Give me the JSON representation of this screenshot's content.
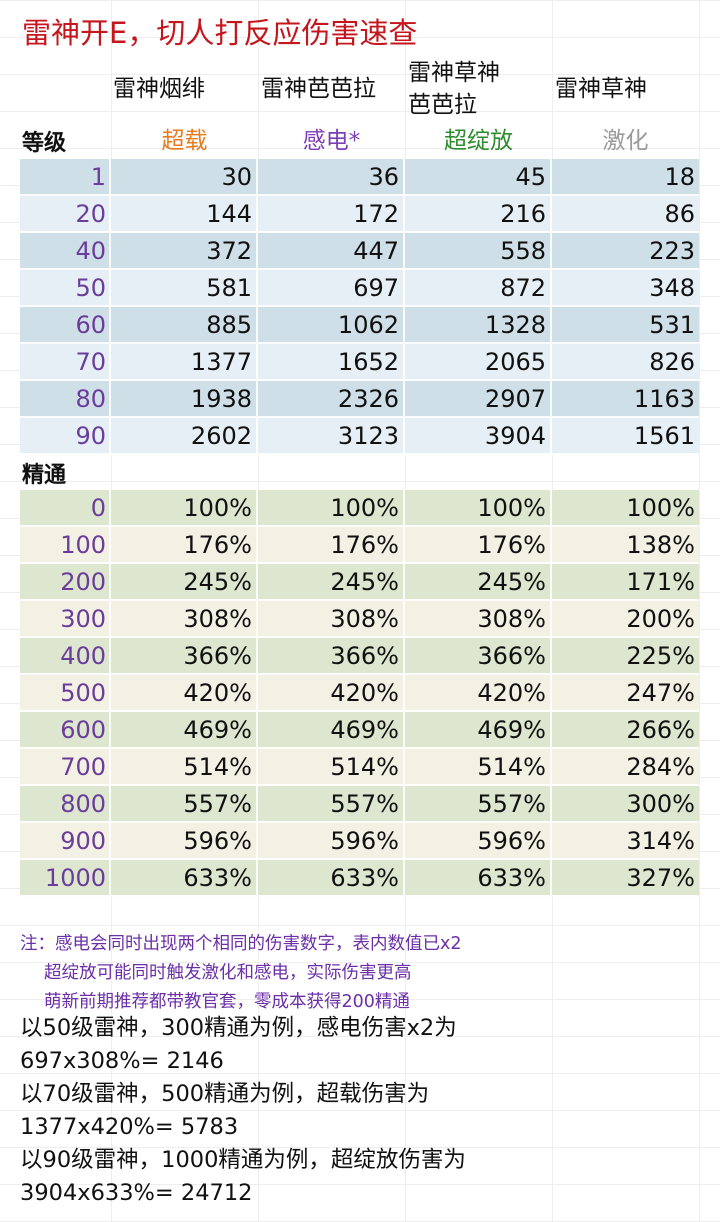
{
  "title": "雷神开E，切人打反应伤害速查",
  "columns": [
    {
      "line1": "雷神烟绯",
      "line2": ""
    },
    {
      "line1": "雷神芭芭拉",
      "line2": ""
    },
    {
      "line1": "雷神草神",
      "line2": "芭芭拉"
    },
    {
      "line1": "雷神草神",
      "line2": ""
    }
  ],
  "level_label": "等级",
  "reactions": [
    {
      "name": "超载",
      "color": "#e87a1e"
    },
    {
      "name": "感电*",
      "color": "#7b3fb6"
    },
    {
      "name": "超绽放",
      "color": "#2e8b2e"
    },
    {
      "name": "激化",
      "color": "#9a9a9a"
    }
  ],
  "level_rows": [
    {
      "level": "1",
      "values": [
        "30",
        "36",
        "45",
        "18"
      ]
    },
    {
      "level": "20",
      "values": [
        "144",
        "172",
        "216",
        "86"
      ]
    },
    {
      "level": "40",
      "values": [
        "372",
        "447",
        "558",
        "223"
      ]
    },
    {
      "level": "50",
      "values": [
        "581",
        "697",
        "872",
        "348"
      ]
    },
    {
      "level": "60",
      "values": [
        "885",
        "1062",
        "1328",
        "531"
      ]
    },
    {
      "level": "70",
      "values": [
        "1377",
        "1652",
        "2065",
        "826"
      ]
    },
    {
      "level": "80",
      "values": [
        "1938",
        "2326",
        "2907",
        "1163"
      ]
    },
    {
      "level": "90",
      "values": [
        "2602",
        "3123",
        "3904",
        "1561"
      ]
    }
  ],
  "em_label": "精通",
  "em_rows": [
    {
      "em": "0",
      "values": [
        "100%",
        "100%",
        "100%",
        "100%"
      ]
    },
    {
      "em": "100",
      "values": [
        "176%",
        "176%",
        "176%",
        "138%"
      ]
    },
    {
      "em": "200",
      "values": [
        "245%",
        "245%",
        "245%",
        "171%"
      ]
    },
    {
      "em": "300",
      "values": [
        "308%",
        "308%",
        "308%",
        "200%"
      ]
    },
    {
      "em": "400",
      "values": [
        "366%",
        "366%",
        "366%",
        "225%"
      ]
    },
    {
      "em": "500",
      "values": [
        "420%",
        "420%",
        "420%",
        "247%"
      ]
    },
    {
      "em": "600",
      "values": [
        "469%",
        "469%",
        "469%",
        "266%"
      ]
    },
    {
      "em": "700",
      "values": [
        "514%",
        "514%",
        "514%",
        "284%"
      ]
    },
    {
      "em": "800",
      "values": [
        "557%",
        "557%",
        "557%",
        "300%"
      ]
    },
    {
      "em": "900",
      "values": [
        "596%",
        "596%",
        "596%",
        "314%"
      ]
    },
    {
      "em": "1000",
      "values": [
        "633%",
        "633%",
        "633%",
        "327%"
      ]
    }
  ],
  "notes": [
    "注：感电会同时出现两个相同的伤害数字，表内数值已x2",
    "超绽放可能同时触发激化和感电，实际伤害更高",
    "萌新前期推荐都带教官套，零成本获得200精通"
  ],
  "examples": [
    {
      "line1": "以50级雷神，300精通为例，感电伤害x2为",
      "line2": "697x308%= 2146"
    },
    {
      "line1": "以70级雷神，500精通为例，超载伤害为",
      "line2": "1377x420%= 5783"
    },
    {
      "line1": "以90级雷神，1000精通为例，超绽放伤害为",
      "line2": "3904x633%= 24712"
    }
  ]
}
